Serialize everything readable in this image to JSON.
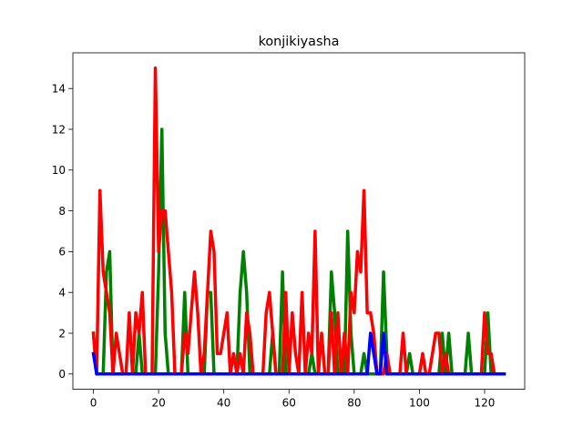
{
  "chart_data": {
    "type": "line",
    "title": "konjikiyasha",
    "xlabel": "",
    "ylabel": "",
    "xlim": [
      -6.3,
      132.3
    ],
    "ylim": [
      -0.75,
      15.75
    ],
    "xticks": [
      0,
      20,
      40,
      60,
      80,
      100,
      120
    ],
    "yticks": [
      0,
      2,
      4,
      6,
      8,
      10,
      12,
      14
    ],
    "grid": false,
    "legend": "none",
    "series": [
      {
        "color": "#008000",
        "values": [
          2,
          0,
          0,
          0,
          5,
          6,
          0,
          0,
          0,
          0,
          0,
          0,
          0,
          0,
          2,
          0,
          0,
          0,
          0,
          0,
          5,
          12,
          2,
          0,
          0,
          0,
          0,
          0,
          4,
          0,
          0,
          0,
          0,
          0,
          0,
          4,
          4,
          0,
          0,
          0,
          0,
          0,
          0,
          0,
          0,
          4,
          6,
          4,
          0,
          0,
          0,
          0,
          0,
          0,
          0,
          2,
          0,
          0,
          5,
          0,
          0,
          0,
          0,
          0,
          0,
          0,
          0,
          1,
          0,
          0,
          0,
          0,
          0,
          5,
          3,
          0,
          0,
          0,
          7,
          2,
          0,
          0,
          0,
          1,
          0,
          0,
          0,
          0,
          0,
          5,
          1,
          0,
          0,
          0,
          0,
          0,
          0,
          1,
          0,
          0,
          0,
          0,
          0,
          0,
          0,
          0,
          0,
          2,
          0,
          2,
          0,
          0,
          0,
          0,
          0,
          2,
          0,
          0,
          0,
          0,
          0,
          3,
          0,
          0,
          0,
          0,
          0
        ]
      },
      {
        "color": "#ff0000",
        "values": [
          2,
          0,
          9,
          5,
          4,
          3,
          0,
          2,
          1,
          0,
          0,
          3,
          0,
          3,
          2,
          4,
          0,
          0,
          0,
          15,
          6,
          8,
          8,
          6,
          4,
          0,
          0,
          0,
          2,
          1,
          3,
          5,
          3,
          0,
          1,
          4,
          7,
          6,
          1,
          1,
          2,
          3,
          0,
          1,
          0,
          1,
          0,
          3,
          2,
          0,
          0,
          0,
          0,
          3,
          4,
          2,
          0,
          0,
          0,
          4,
          0,
          3,
          1,
          0,
          4,
          0,
          2,
          1,
          7,
          0,
          2,
          0,
          0,
          3,
          0,
          3,
          0,
          2,
          0,
          4,
          3,
          6,
          5,
          9,
          3,
          3,
          2,
          0,
          0,
          0,
          1,
          0,
          0,
          0,
          0,
          2,
          0,
          0,
          0,
          0,
          0,
          1,
          0,
          0,
          1,
          2,
          2,
          0,
          1,
          0,
          0,
          0,
          0,
          0,
          0,
          0,
          0,
          0,
          0,
          0,
          3,
          1,
          1,
          0,
          0,
          0,
          0
        ]
      },
      {
        "color": "#0000ff",
        "values": [
          1,
          0,
          0,
          0,
          0,
          0,
          0,
          0,
          0,
          0,
          0,
          0,
          0,
          0,
          0,
          0,
          0,
          0,
          0,
          0,
          0,
          0,
          0,
          0,
          0,
          0,
          0,
          0,
          0,
          0,
          0,
          0,
          0,
          0,
          0,
          0,
          0,
          0,
          0,
          0,
          0,
          0,
          0,
          0,
          0,
          0,
          0,
          0,
          0,
          0,
          0,
          0,
          0,
          0,
          0,
          0,
          0,
          0,
          0,
          0,
          0,
          0,
          0,
          0,
          0,
          0,
          0,
          0,
          0,
          0,
          0,
          0,
          0,
          0,
          0,
          0,
          0,
          0,
          0,
          0,
          0,
          0,
          0,
          0,
          0,
          2,
          1,
          0,
          0,
          2,
          0,
          0,
          0,
          0,
          0,
          0,
          0,
          0,
          0,
          0,
          0,
          0,
          0,
          0,
          0,
          0,
          0,
          0,
          0,
          0,
          0,
          0,
          0,
          0,
          0,
          0,
          0,
          0,
          0,
          0,
          0,
          0,
          0,
          0,
          0,
          0,
          0
        ]
      }
    ]
  }
}
